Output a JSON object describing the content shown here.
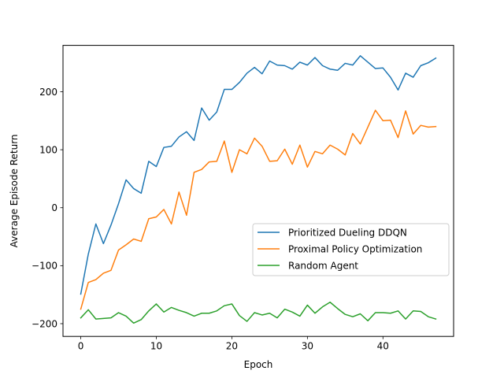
{
  "chart_data": {
    "type": "line",
    "title": "",
    "xlabel": "Epoch",
    "ylabel": "Average Episode Return",
    "xlim": [
      -2.35,
      49.35
    ],
    "ylim": [
      -222,
      280
    ],
    "xticks": [
      0,
      10,
      20,
      30,
      40
    ],
    "yticks": [
      -200,
      -100,
      0,
      100,
      200
    ],
    "ytick_labels": [
      "−200",
      "−100",
      "0",
      "100",
      "200"
    ],
    "grid": false,
    "legend_position": "center-right",
    "x": [
      0,
      1,
      2,
      3,
      4,
      5,
      6,
      7,
      8,
      9,
      10,
      11,
      12,
      13,
      14,
      15,
      16,
      17,
      18,
      19,
      20,
      21,
      22,
      23,
      24,
      25,
      26,
      27,
      28,
      29,
      30,
      31,
      32,
      33,
      34,
      35,
      36,
      37,
      38,
      39,
      40,
      41,
      42,
      43,
      44,
      45,
      46,
      47
    ],
    "series": [
      {
        "name": "Prioritized Dueling DDQN",
        "color": "#1f77b4",
        "values": [
          -149,
          -80,
          -28,
          -62,
          -30,
          7,
          48,
          33,
          25,
          80,
          71,
          104,
          106,
          122,
          131,
          116,
          172,
          151,
          165,
          204,
          204,
          216,
          232,
          242,
          231,
          253,
          246,
          245,
          239,
          251,
          246,
          259,
          245,
          239,
          237,
          249,
          246,
          262,
          251,
          240,
          241,
          225,
          203,
          232,
          225,
          245,
          250,
          258
        ]
      },
      {
        "name": "Proximal Policy Optimization",
        "color": "#ff7f0e",
        "values": [
          -175,
          -129,
          -124,
          -113,
          -108,
          -73,
          -64,
          -54,
          -58,
          -19,
          -16,
          -3,
          -28,
          27,
          -13,
          61,
          66,
          79,
          80,
          115,
          61,
          100,
          93,
          120,
          106,
          80,
          81,
          101,
          75,
          108,
          70,
          97,
          93,
          108,
          101,
          91,
          128,
          110,
          139,
          168,
          150,
          151,
          121,
          167,
          127,
          142,
          139,
          140
        ]
      },
      {
        "name": "Random Agent",
        "color": "#2ca02c",
        "values": [
          -190,
          -176,
          -192,
          -191,
          -190,
          -181,
          -187,
          -199,
          -193,
          -178,
          -166,
          -180,
          -172,
          -177,
          -181,
          -187,
          -182,
          -182,
          -178,
          -169,
          -166,
          -186,
          -196,
          -181,
          -185,
          -182,
          -190,
          -175,
          -180,
          -187,
          -168,
          -182,
          -171,
          -163,
          -174,
          -184,
          -188,
          -183,
          -195,
          -181,
          -181,
          -182,
          -178,
          -192,
          -178,
          -179,
          -188,
          -192
        ]
      }
    ]
  }
}
